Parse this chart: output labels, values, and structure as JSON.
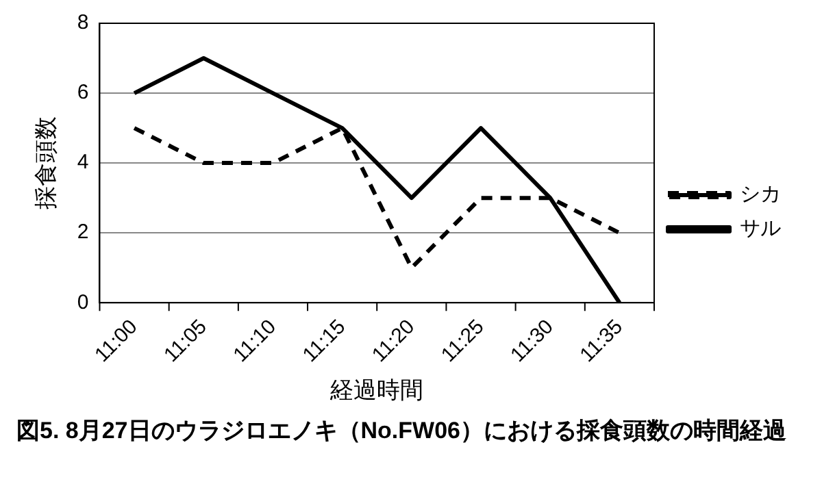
{
  "chart_data": {
    "type": "line",
    "title": "図5. 8月27日のウラジロエノキ（No.FW06）における採食頭数の時間経過",
    "xlabel": "経過時間",
    "ylabel": "採食頭数",
    "categories": [
      "11:00",
      "11:05",
      "11:10",
      "11:15",
      "11:20",
      "11:25",
      "11:30",
      "11:35"
    ],
    "series": [
      {
        "name": "シカ",
        "color": "#000000",
        "line_style": "dashed",
        "values": [
          5,
          4,
          4,
          5,
          1,
          3,
          3,
          2
        ]
      },
      {
        "name": "サル",
        "color": "#000000",
        "line_style": "solid",
        "values": [
          6,
          7,
          6,
          5,
          3,
          5,
          3,
          0
        ]
      }
    ],
    "ylim": [
      0,
      8
    ],
    "yticks": [
      0,
      2,
      4,
      6,
      8
    ],
    "grid": "y",
    "legend": "right",
    "marker": "none"
  }
}
